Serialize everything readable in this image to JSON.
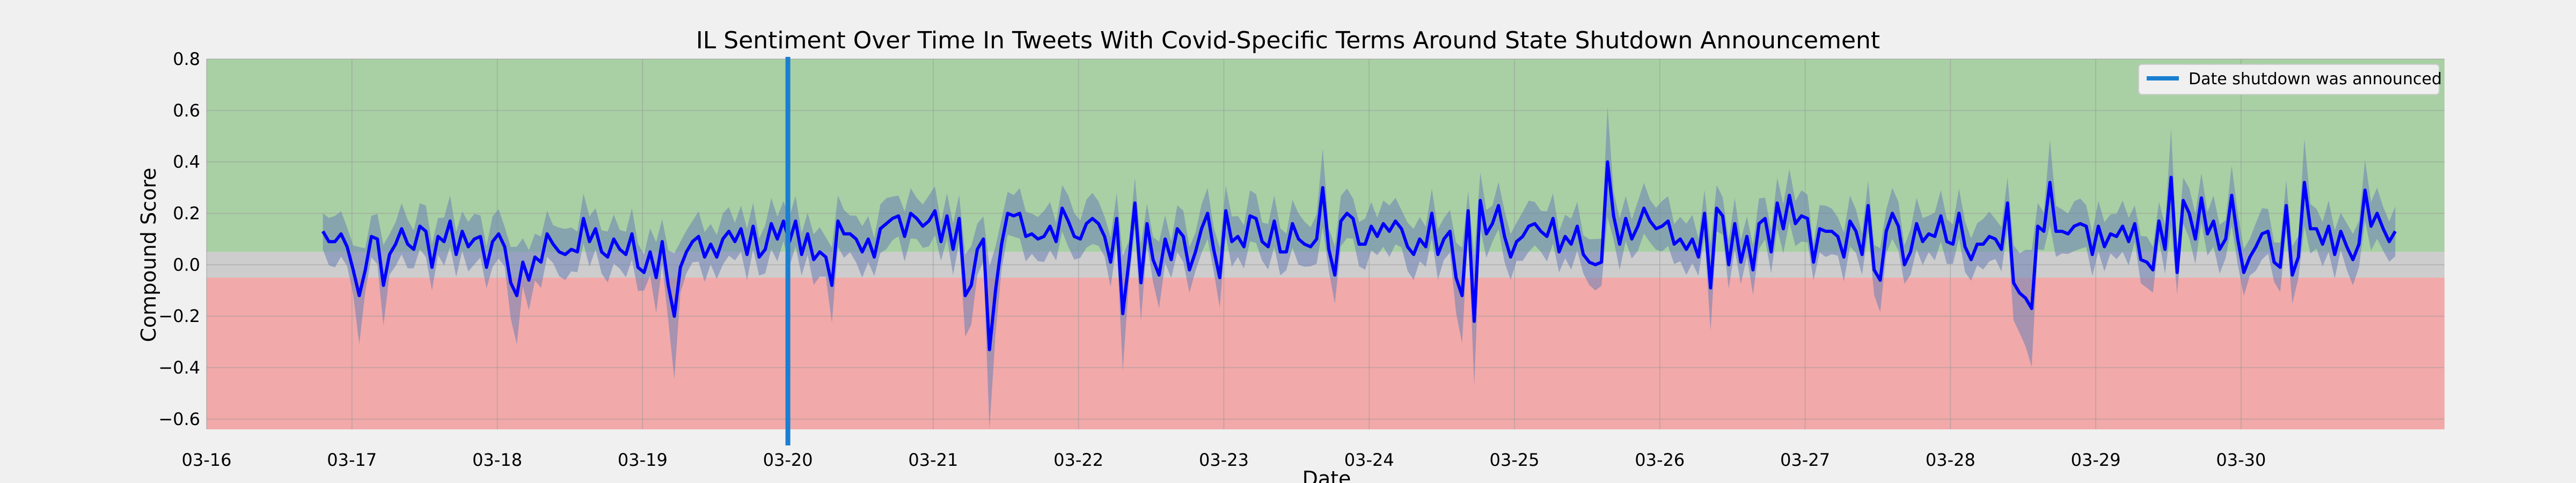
{
  "chart_data": {
    "type": "line",
    "title": "IL Sentiment Over Time In Tweets With Covid-Specific Terms Around State Shutdown Announcement",
    "xlabel": "Date",
    "ylabel": "Compound Score",
    "x_tick_labels": [
      "03-16",
      "03-17",
      "03-18",
      "03-19",
      "03-20",
      "03-21",
      "03-22",
      "03-23",
      "03-24",
      "03-25",
      "03-26",
      "03-27",
      "03-28",
      "03-29",
      "03-30"
    ],
    "y_ticks": [
      -0.6,
      -0.4,
      -0.2,
      0.0,
      0.2,
      0.4,
      0.6,
      0.8
    ],
    "xlim_days": [
      0,
      15.4
    ],
    "ylim": [
      -0.64,
      0.8
    ],
    "grid": true,
    "legend_position": "top-right",
    "bands": [
      {
        "from": 0.05,
        "to": 0.8,
        "color": "#a8d0a4"
      },
      {
        "from": -0.05,
        "to": 0.05,
        "color": "#cdcdcd"
      },
      {
        "from": -0.64,
        "to": -0.05,
        "color": "#f2a9a9"
      }
    ],
    "announcement": {
      "x_day": 4.0,
      "label": "Date shutdown was announced",
      "color": "#1a7fd1"
    },
    "series": [
      {
        "color": "#0000ff",
        "band_color": "#6a7fb4",
        "x_start_day": 0.8,
        "x_step_day": 0.0417,
        "values": [
          0.13,
          0.09,
          0.09,
          0.12,
          0.07,
          -0.02,
          -0.12,
          -0.02,
          0.11,
          0.1,
          -0.08,
          0.04,
          0.08,
          0.14,
          0.08,
          0.06,
          0.15,
          0.13,
          -0.01,
          0.11,
          0.09,
          0.17,
          0.04,
          0.13,
          0.07,
          0.1,
          0.11,
          -0.01,
          0.09,
          0.12,
          0.07,
          -0.07,
          -0.12,
          0.01,
          -0.06,
          0.03,
          0.01,
          0.12,
          0.08,
          0.05,
          0.04,
          0.06,
          0.05,
          0.18,
          0.09,
          0.14,
          0.05,
          0.03,
          0.1,
          0.06,
          0.04,
          0.12,
          -0.01,
          -0.03,
          0.05,
          -0.05,
          0.09,
          -0.08,
          -0.2,
          -0.01,
          0.05,
          0.09,
          0.11,
          0.03,
          0.08,
          0.03,
          0.1,
          0.13,
          0.09,
          0.14,
          0.04,
          0.15,
          0.03,
          0.06,
          0.16,
          0.1,
          0.17,
          0.09,
          0.17,
          0.04,
          0.12,
          0.02,
          0.05,
          0.03,
          -0.08,
          0.17,
          0.12,
          0.12,
          0.1,
          0.05,
          0.1,
          0.03,
          0.14,
          0.16,
          0.18,
          0.19,
          0.11,
          0.2,
          0.18,
          0.15,
          0.17,
          0.21,
          0.09,
          0.19,
          0.06,
          0.18,
          -0.12,
          -0.08,
          0.06,
          0.1,
          -0.33,
          -0.1,
          0.08,
          0.2,
          0.19,
          0.2,
          0.11,
          0.12,
          0.1,
          0.11,
          0.15,
          0.09,
          0.22,
          0.17,
          0.11,
          0.1,
          0.16,
          0.18,
          0.16,
          0.11,
          0.01,
          0.18,
          -0.19,
          0.01,
          0.24,
          -0.07,
          0.16,
          0.02,
          -0.04,
          0.1,
          0.02,
          0.14,
          0.11,
          -0.02,
          0.05,
          0.14,
          0.2,
          0.06,
          -0.05,
          0.21,
          0.09,
          0.11,
          0.07,
          0.19,
          0.18,
          0.09,
          0.07,
          0.17,
          0.05,
          0.05,
          0.16,
          0.1,
          0.08,
          0.07,
          0.1,
          0.3,
          0.06,
          -0.04,
          0.17,
          0.2,
          0.18,
          0.08,
          0.08,
          0.15,
          0.11,
          0.16,
          0.13,
          0.17,
          0.14,
          0.07,
          0.04,
          0.1,
          0.07,
          0.2,
          0.04,
          0.1,
          0.13,
          -0.05,
          -0.12,
          0.21,
          -0.22,
          0.25,
          0.12,
          0.16,
          0.23,
          0.11,
          0.03,
          0.09,
          0.11,
          0.15,
          0.16,
          0.13,
          0.11,
          0.18,
          0.05,
          0.11,
          0.08,
          0.15,
          0.04,
          0.01,
          0.0,
          0.01,
          0.4,
          0.19,
          0.08,
          0.18,
          0.1,
          0.15,
          0.22,
          0.17,
          0.14,
          0.15,
          0.17,
          0.08,
          0.1,
          0.06,
          0.1,
          0.03,
          0.2,
          -0.09,
          0.22,
          0.19,
          0.0,
          0.16,
          0.01,
          0.11,
          -0.02,
          0.16,
          0.18,
          0.05,
          0.24,
          0.14,
          0.27,
          0.16,
          0.19,
          0.18,
          0.01,
          0.14,
          0.13,
          0.13,
          0.11,
          0.03,
          0.17,
          0.13,
          0.04,
          0.23,
          -0.02,
          -0.06,
          0.13,
          0.2,
          0.15,
          0.0,
          0.05,
          0.16,
          0.09,
          0.12,
          0.11,
          0.19,
          0.09,
          0.08,
          0.2,
          0.07,
          0.02,
          0.08,
          0.08,
          0.11,
          0.1,
          0.06,
          0.24,
          -0.07,
          -0.11,
          -0.13,
          -0.17,
          0.15,
          0.13,
          0.32,
          0.13,
          0.13,
          0.12,
          0.15,
          0.16,
          0.15,
          0.04,
          0.15,
          0.07,
          0.12,
          0.11,
          0.15,
          0.09,
          0.16,
          0.02,
          0.01,
          -0.02,
          0.17,
          0.06,
          0.34,
          -0.03,
          0.25,
          0.2,
          0.1,
          0.26,
          0.12,
          0.17,
          0.06,
          0.1,
          0.27,
          0.1,
          -0.03,
          0.03,
          0.07,
          0.12,
          0.13,
          0.01,
          -0.01,
          0.23,
          -0.04,
          0.03,
          0.32,
          0.14,
          0.14,
          0.08,
          0.15,
          0.04,
          0.13,
          0.07,
          0.02,
          0.08,
          0.29,
          0.15,
          0.2,
          0.14,
          0.09,
          0.13
        ]
      }
    ]
  }
}
